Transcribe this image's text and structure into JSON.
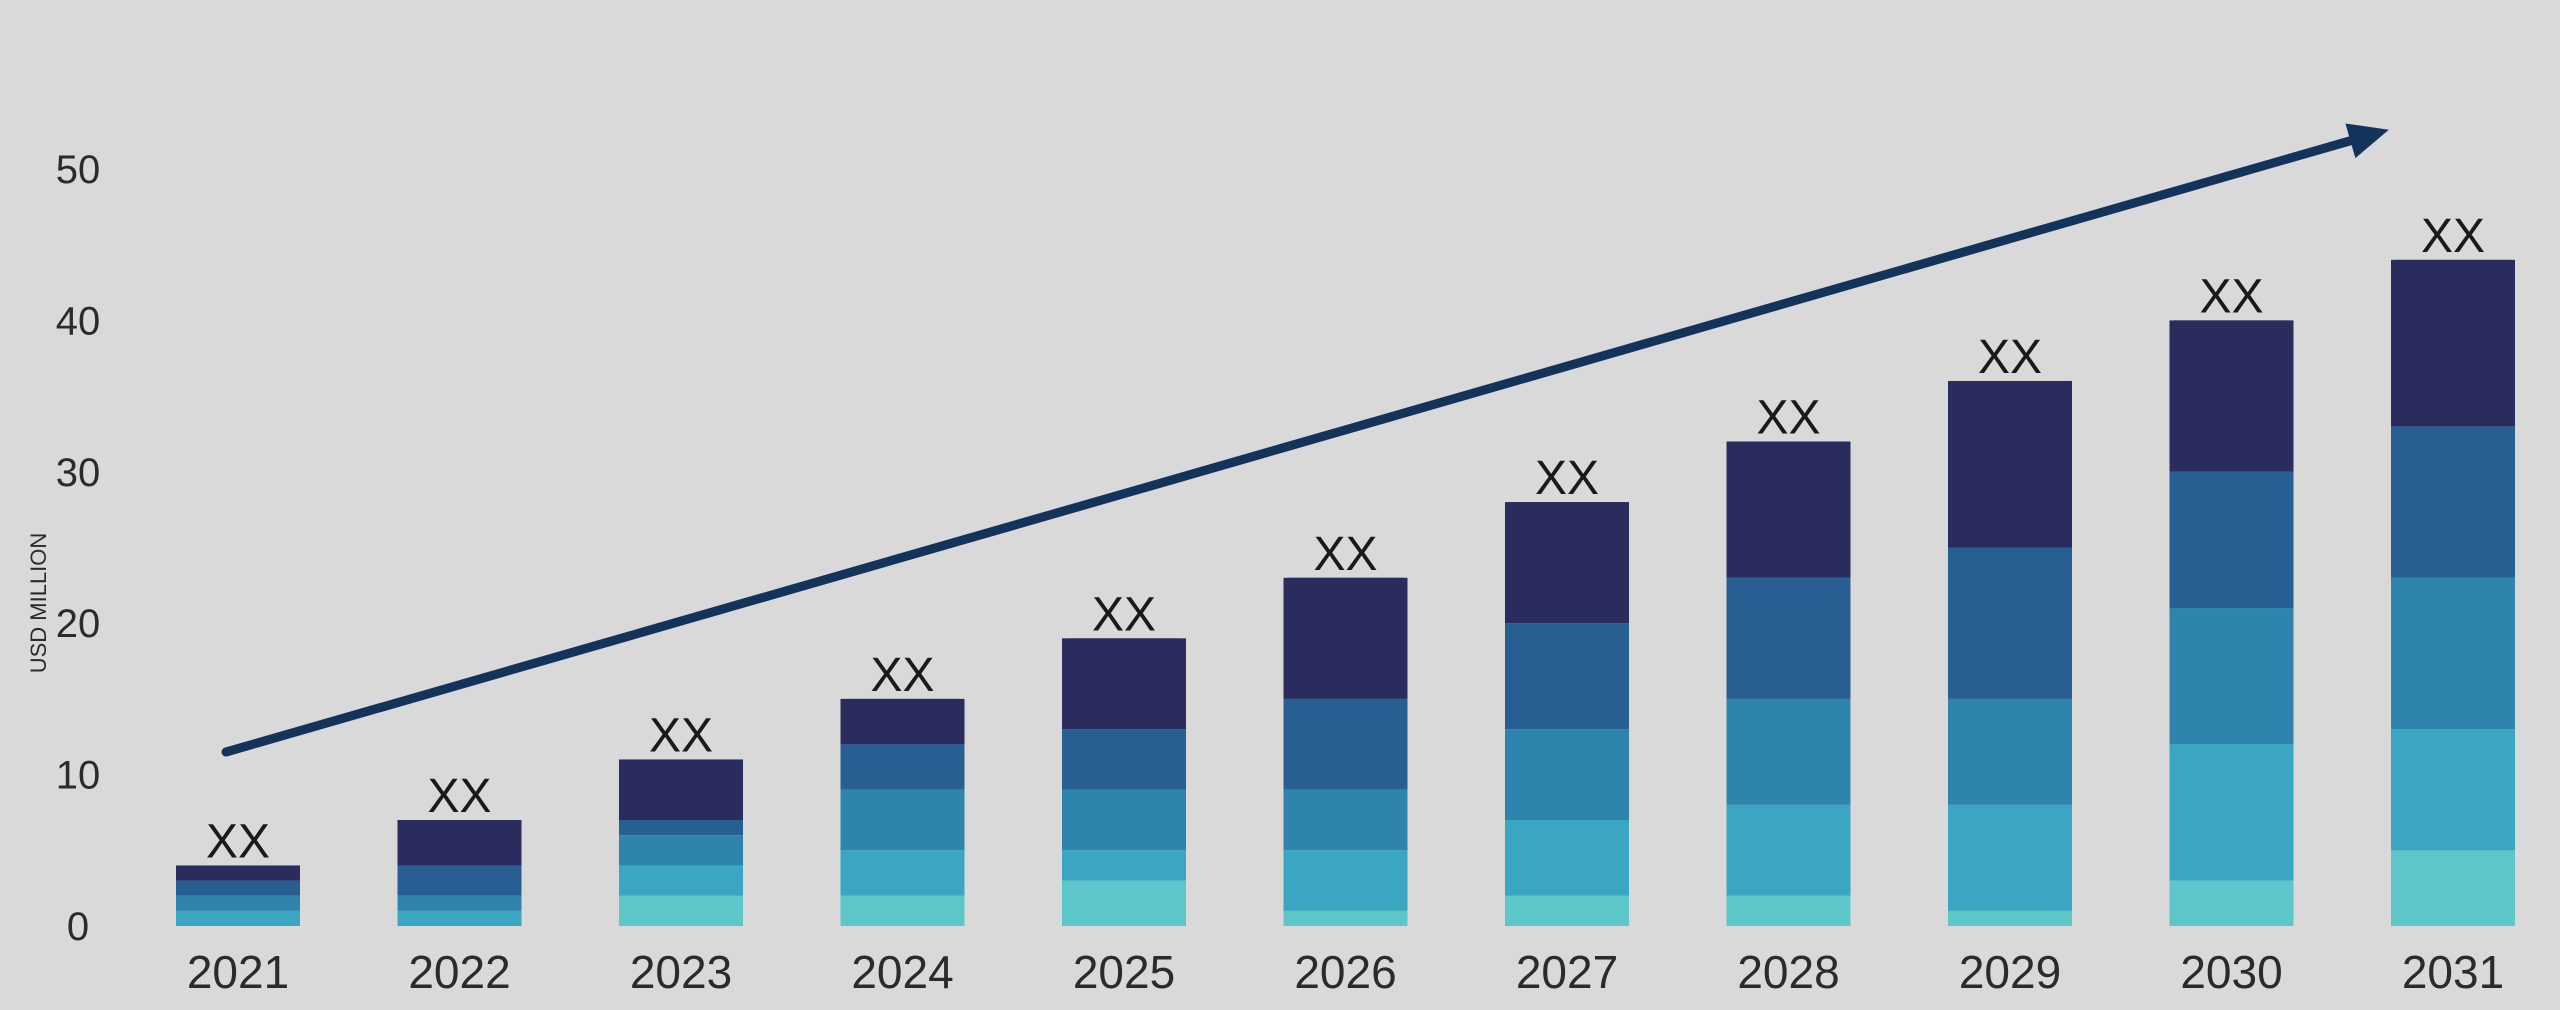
{
  "chart_data": {
    "type": "bar",
    "stacked": true,
    "title": "",
    "xlabel": "",
    "ylabel": "USD MILLION",
    "ylim": [
      0,
      50
    ],
    "yticks": [
      0,
      10,
      20,
      30,
      40,
      50
    ],
    "grid": false,
    "legend": "none",
    "trend_arrow": true,
    "categories": [
      "2021",
      "2022",
      "2023",
      "2024",
      "2025",
      "2026",
      "2027",
      "2028",
      "2029",
      "2030",
      "2031"
    ],
    "data_labels": [
      "XX",
      "XX",
      "XX",
      "XX",
      "XX",
      "XX",
      "XX",
      "XX",
      "XX",
      "XX",
      "XX"
    ],
    "series": [
      {
        "color": "#5cc6c9",
        "values": [
          0,
          0,
          2,
          2,
          3,
          1,
          2,
          2,
          1,
          3,
          5
        ]
      },
      {
        "color": "#3aa6c2",
        "values": [
          1,
          1,
          2,
          3,
          2,
          4,
          5,
          6,
          7,
          9,
          8
        ]
      },
      {
        "color": "#2e84ad",
        "values": [
          1,
          1,
          2,
          4,
          4,
          4,
          6,
          7,
          7,
          9,
          10
        ]
      },
      {
        "color": "#285f92",
        "values": [
          1,
          2,
          1,
          3,
          4,
          6,
          7,
          8,
          10,
          9,
          10
        ]
      },
      {
        "color": "#2a2c5d",
        "values": [
          1,
          3,
          4,
          3,
          6,
          8,
          8,
          9,
          11,
          10,
          11
        ]
      }
    ]
  }
}
